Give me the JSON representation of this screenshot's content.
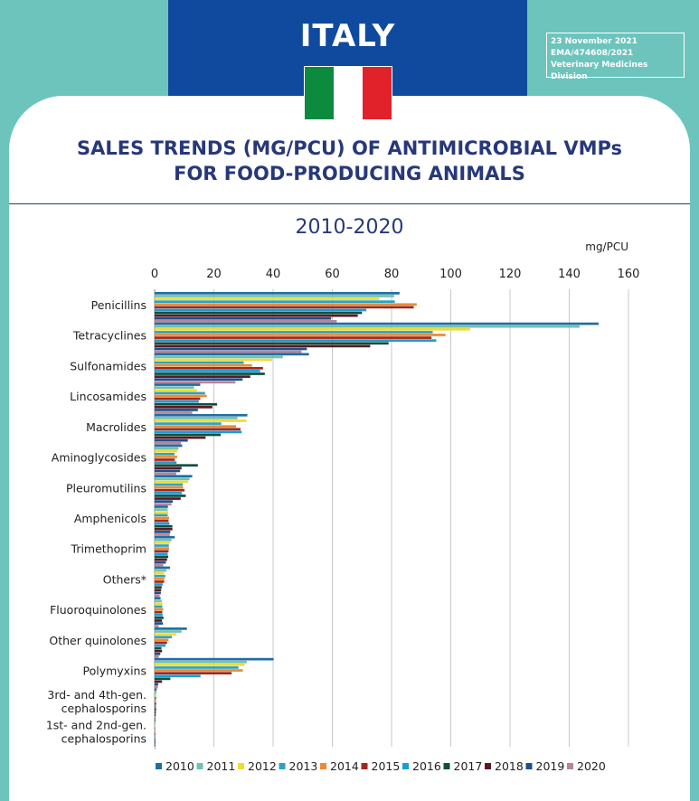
{
  "header": {
    "country": "ITALY",
    "date": "23 November 2021",
    "reference": "EMA/474608/2021",
    "division": "Veterinary Medicines Division",
    "flag_colors": [
      "#0c8a3e",
      "#ffffff",
      "#e2222b"
    ]
  },
  "title_line1": "SALES TRENDS (MG/PCU) OF ANTIMICROBIAL VMPs",
  "title_line2": "FOR FOOD-PRODUCING ANIMALS",
  "subtitle": "2010-2020",
  "chart_data": {
    "type": "bar",
    "orientation": "horizontal",
    "unit_label": "mg/PCU",
    "xlim": [
      0,
      160
    ],
    "xticks": [
      0,
      20,
      40,
      60,
      80,
      100,
      120,
      140,
      160
    ],
    "grid": true,
    "legend_position": "bottom",
    "categories": [
      [
        "Penicillins"
      ],
      [
        "Tetracyclines"
      ],
      [
        "Sulfonamides"
      ],
      [
        "Lincosamides"
      ],
      [
        "Macrolides"
      ],
      [
        "Aminoglycosides"
      ],
      [
        "Pleuromutilins"
      ],
      [
        "Amphenicols"
      ],
      [
        "Trimethoprim"
      ],
      [
        "Others*"
      ],
      [
        "Fluoroquinolones"
      ],
      [
        "Other quinolones"
      ],
      [
        "Polymyxins"
      ],
      [
        "3rd- and 4th-gen.",
        "cephalosporins"
      ],
      [
        "1st- and 2nd-gen.",
        "cephalosporins"
      ]
    ],
    "series": [
      {
        "name": "2010",
        "color": "#1f6ea3",
        "values": [
          82.7,
          149.9,
          52.1,
          15.4,
          31.3,
          9.3,
          12.7,
          4.5,
          6.8,
          5.2,
          2.0,
          10.9,
          40.2,
          0.7,
          0.3
        ]
      },
      {
        "name": "2011",
        "color": "#6fc1b4",
        "values": [
          80.9,
          143.5,
          43.3,
          13.3,
          28.0,
          8.0,
          11.8,
          4.4,
          5.7,
          4.0,
          2.4,
          9.1,
          31.1,
          0.6,
          0.3
        ]
      },
      {
        "name": "2012",
        "color": "#f1dc2f",
        "values": [
          75.9,
          106.5,
          39.7,
          14.3,
          31.0,
          7.6,
          11.3,
          4.6,
          5.2,
          3.2,
          2.7,
          7.4,
          30.4,
          0.6,
          0.3
        ]
      },
      {
        "name": "2013",
        "color": "#2aa3c4",
        "values": [
          81.1,
          93.9,
          30.1,
          17.0,
          22.5,
          6.7,
          9.5,
          4.4,
          4.8,
          3.6,
          2.6,
          5.8,
          28.3,
          0.6,
          0.2
        ]
      },
      {
        "name": "2014",
        "color": "#ec8a33",
        "values": [
          88.5,
          98.2,
          32.9,
          17.6,
          27.5,
          7.6,
          9.6,
          4.9,
          4.9,
          3.3,
          2.9,
          4.7,
          29.8,
          0.5,
          0.2
        ]
      },
      {
        "name": "2015",
        "color": "#a3281c",
        "values": [
          87.5,
          93.5,
          36.6,
          15.4,
          29.0,
          6.8,
          10.1,
          4.7,
          4.7,
          3.2,
          2.6,
          4.2,
          26.0,
          0.5,
          0.2
        ]
      },
      {
        "name": "2016",
        "color": "#1a9cd8",
        "values": [
          71.5,
          95.1,
          35.6,
          14.9,
          29.4,
          7.4,
          9.2,
          5.0,
          4.4,
          2.7,
          2.7,
          3.7,
          15.5,
          0.5,
          0.2
        ]
      },
      {
        "name": "2017",
        "color": "#0e4f3f",
        "values": [
          70.0,
          79.0,
          37.2,
          21.1,
          22.3,
          14.6,
          10.5,
          6.0,
          4.6,
          2.4,
          3.0,
          2.3,
          5.3,
          0.5,
          0.2
        ]
      },
      {
        "name": "2018",
        "color": "#5a1820",
        "values": [
          68.6,
          72.8,
          32.3,
          19.5,
          17.2,
          9.1,
          8.8,
          6.0,
          4.2,
          2.2,
          2.5,
          2.5,
          2.5,
          0.4,
          0.2
        ]
      },
      {
        "name": "2019",
        "color": "#1c4f8f",
        "values": [
          59.6,
          51.4,
          29.7,
          14.6,
          11.2,
          8.6,
          6.1,
          5.3,
          3.8,
          2.1,
          2.8,
          1.9,
          1.2,
          0.4,
          0.2
        ]
      },
      {
        "name": "2020",
        "color": "#b98497",
        "values": [
          61.5,
          49.6,
          27.3,
          12.7,
          8.9,
          7.3,
          5.7,
          5.1,
          2.9,
          1.7,
          1.4,
          1.4,
          1.1,
          0.4,
          0.2
        ]
      }
    ]
  }
}
